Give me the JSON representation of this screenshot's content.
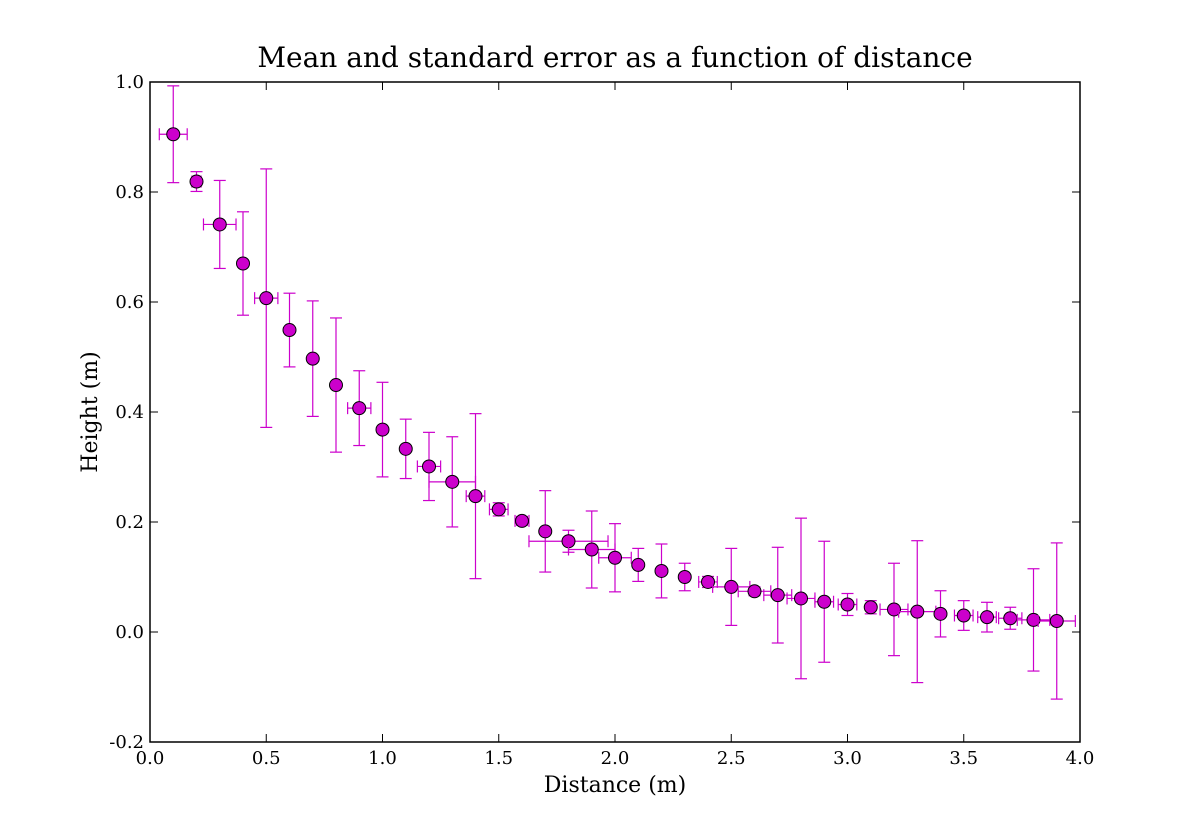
{
  "chart_data": {
    "type": "scatter",
    "title": "Mean and standard error as a function of distance",
    "xlabel": "Distance (m)",
    "ylabel": "Height (m)",
    "xlim": [
      0.0,
      4.0
    ],
    "ylim": [
      -0.2,
      1.0
    ],
    "x_ticks": [
      0.0,
      0.5,
      1.0,
      1.5,
      2.0,
      2.5,
      3.0,
      3.5,
      4.0
    ],
    "x_tick_labels": [
      "0.0",
      "0.5",
      "1.0",
      "1.5",
      "2.0",
      "2.5",
      "3.0",
      "3.5",
      "4.0"
    ],
    "y_ticks": [
      -0.2,
      0.0,
      0.2,
      0.4,
      0.6,
      0.8,
      1.0
    ],
    "y_tick_labels": [
      "-0.2",
      "0.0",
      "0.2",
      "0.4",
      "0.6",
      "0.8",
      "1.0"
    ],
    "grid": false,
    "marker_color": "#cc00cc",
    "errorbar_color": "#cc00cc",
    "series": [
      {
        "x": [
          0.1,
          0.2,
          0.3,
          0.4,
          0.5,
          0.6,
          0.7,
          0.8,
          0.9,
          1.0,
          1.1,
          1.2,
          1.3,
          1.4,
          1.5,
          1.6,
          1.7,
          1.8,
          1.9,
          2.0,
          2.1,
          2.2,
          2.3,
          2.4,
          2.5,
          2.6,
          2.7,
          2.8,
          2.9,
          3.0,
          3.1,
          3.2,
          3.3,
          3.4,
          3.5,
          3.6,
          3.7,
          3.8,
          3.9
        ],
        "y": [
          0.905,
          0.819,
          0.741,
          0.67,
          0.607,
          0.549,
          0.497,
          0.449,
          0.407,
          0.368,
          0.333,
          0.301,
          0.273,
          0.247,
          0.223,
          0.202,
          0.183,
          0.165,
          0.15,
          0.135,
          0.122,
          0.111,
          0.1,
          0.091,
          0.082,
          0.074,
          0.067,
          0.061,
          0.055,
          0.05,
          0.045,
          0.041,
          0.037,
          0.033,
          0.03,
          0.027,
          0.025,
          0.022,
          0.02
        ],
        "yerr": [
          0.088,
          0.018,
          0.08,
          0.094,
          0.235,
          0.067,
          0.105,
          0.122,
          0.068,
          0.086,
          0.054,
          0.062,
          0.082,
          0.15,
          0.012,
          0.008,
          0.074,
          0.02,
          0.07,
          0.062,
          0.03,
          0.049,
          0.025,
          0.01,
          0.07,
          0.008,
          0.087,
          0.146,
          0.11,
          0.02,
          0.012,
          0.084,
          0.129,
          0.042,
          0.027,
          0.027,
          0.02,
          0.093,
          0.142
        ],
        "xerr": [
          0.06,
          0.02,
          0.07,
          0.0,
          0.05,
          0.0,
          0.0,
          0.0,
          0.05,
          0.0,
          0.0,
          0.05,
          0.1,
          0.04,
          0.04,
          0.03,
          0.0,
          0.17,
          0.1,
          0.07,
          0.0,
          0.0,
          0.0,
          0.04,
          0.08,
          0.07,
          0.06,
          0.06,
          0.04,
          0.04,
          0.0,
          0.06,
          0.08,
          0.0,
          0.04,
          0.04,
          0.05,
          0.07,
          0.08
        ]
      }
    ]
  }
}
